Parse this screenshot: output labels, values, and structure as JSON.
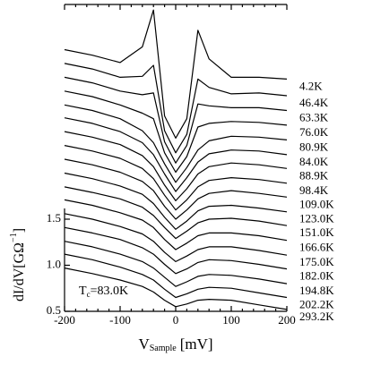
{
  "chart_data": {
    "type": "line",
    "x_label": {
      "main": "V",
      "sub": "Sample",
      "unit": "[mV]"
    },
    "y_label": {
      "main": "dI/dV[GΩ",
      "sup": "−1",
      "end": "]"
    },
    "annotation": {
      "main": "T",
      "sub": "c",
      "rest": "=83.0K"
    },
    "x": [
      -200,
      -150,
      -100,
      -60,
      -40,
      -20,
      0,
      20,
      40,
      60,
      100,
      150,
      200
    ],
    "xlim": [
      -200,
      200
    ],
    "xticks": [
      -200,
      -100,
      0,
      100,
      200
    ],
    "ylim": [
      0.5,
      3.83
    ],
    "yticks": [
      0.5,
      {
        "value": 1,
        "label": "1.0"
      },
      1.5
    ],
    "series": [
      {
        "name": "4.2K",
        "color": "#000000",
        "values": [
          3.34,
          3.28,
          3.2,
          3.37,
          3.77,
          2.62,
          2.38,
          2.59,
          3.55,
          3.24,
          3.04,
          3.04,
          3.02
        ]
      },
      {
        "name": "46.4K",
        "color": "#000000",
        "values": [
          3.19,
          3.13,
          3.04,
          3.05,
          3.17,
          2.46,
          2.22,
          2.42,
          3.02,
          2.93,
          2.86,
          2.87,
          2.84
        ]
      },
      {
        "name": "63.3K",
        "color": "#000000",
        "values": [
          3.04,
          2.98,
          2.89,
          2.85,
          2.87,
          2.34,
          2.11,
          2.3,
          2.75,
          2.73,
          2.71,
          2.71,
          2.68
        ]
      },
      {
        "name": "76.0K",
        "color": "#000000",
        "values": [
          2.89,
          2.83,
          2.74,
          2.65,
          2.59,
          2.22,
          2.01,
          2.18,
          2.5,
          2.54,
          2.56,
          2.55,
          2.52
        ]
      },
      {
        "name": "80.9K",
        "color": "#000000",
        "values": [
          2.74,
          2.68,
          2.59,
          2.46,
          2.33,
          2.1,
          1.9,
          2.06,
          2.25,
          2.35,
          2.4,
          2.39,
          2.36
        ]
      },
      {
        "name": "84.0K",
        "color": "#000000",
        "values": [
          2.6,
          2.54,
          2.45,
          2.33,
          2.2,
          1.99,
          1.8,
          1.95,
          2.12,
          2.21,
          2.25,
          2.24,
          2.2
        ]
      },
      {
        "name": "88.9K",
        "color": "#000000",
        "values": [
          2.45,
          2.39,
          2.31,
          2.19,
          2.07,
          1.87,
          1.7,
          1.83,
          1.99,
          2.07,
          2.11,
          2.09,
          2.05
        ]
      },
      {
        "name": "98.4K",
        "color": "#000000",
        "values": [
          2.3,
          2.24,
          2.16,
          2.05,
          1.94,
          1.76,
          1.6,
          1.71,
          1.85,
          1.92,
          1.95,
          1.93,
          1.89
        ]
      },
      {
        "name": "109.0K",
        "color": "#000000",
        "values": [
          2.15,
          2.09,
          2.01,
          1.91,
          1.81,
          1.64,
          1.5,
          1.6,
          1.72,
          1.78,
          1.81,
          1.78,
          1.74
        ]
      },
      {
        "name": "123.0K",
        "color": "#000000",
        "values": [
          2.0,
          1.94,
          1.86,
          1.77,
          1.67,
          1.52,
          1.39,
          1.48,
          1.59,
          1.64,
          1.65,
          1.62,
          1.58
        ]
      },
      {
        "name": "151.0K",
        "color": "#000000",
        "values": [
          1.85,
          1.79,
          1.72,
          1.63,
          1.54,
          1.41,
          1.29,
          1.37,
          1.46,
          1.5,
          1.51,
          1.48,
          1.43
        ]
      },
      {
        "name": "166.6K",
        "color": "#000000",
        "values": [
          1.71,
          1.65,
          1.57,
          1.49,
          1.41,
          1.28,
          1.17,
          1.24,
          1.32,
          1.35,
          1.35,
          1.32,
          1.27
        ]
      },
      {
        "name": "175.0K",
        "color": "#000000",
        "values": [
          1.56,
          1.5,
          1.42,
          1.34,
          1.26,
          1.14,
          1.04,
          1.1,
          1.17,
          1.2,
          1.2,
          1.16,
          1.11
        ]
      },
      {
        "name": "182.0K",
        "color": "#000000",
        "values": [
          1.41,
          1.35,
          1.28,
          1.19,
          1.12,
          1.01,
          0.91,
          0.96,
          1.03,
          1.06,
          1.05,
          1.01,
          0.96
        ]
      },
      {
        "name": "194.8K",
        "color": "#000000",
        "values": [
          1.26,
          1.2,
          1.12,
          1.04,
          0.97,
          0.87,
          0.77,
          0.82,
          0.88,
          0.9,
          0.89,
          0.85,
          0.8
        ]
      },
      {
        "name": "202.2K",
        "color": "#000000",
        "values": [
          1.12,
          1.06,
          0.98,
          0.9,
          0.84,
          0.74,
          0.65,
          0.69,
          0.74,
          0.76,
          0.75,
          0.7,
          0.65
        ]
      },
      {
        "name": "293.2K",
        "color": "#000000",
        "values": [
          0.97,
          0.91,
          0.84,
          0.77,
          0.71,
          0.62,
          0.55,
          0.58,
          0.62,
          0.63,
          0.62,
          0.57,
          0.52
        ]
      }
    ]
  }
}
